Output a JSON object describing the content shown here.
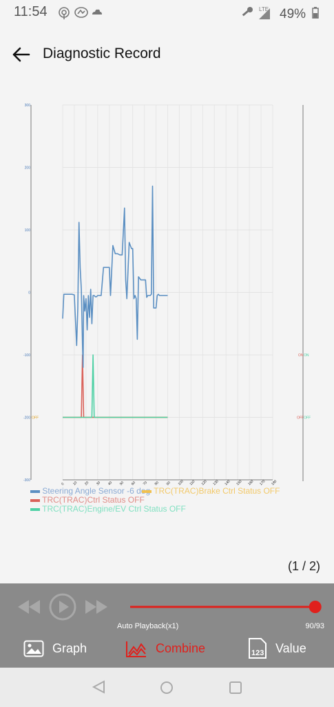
{
  "status_bar": {
    "time": "11:54",
    "battery": "49%",
    "network": "LTE",
    "icons": [
      "hotspot-icon",
      "link-icon",
      "cloud-icon",
      "key-icon",
      "signal-icon",
      "battery-icon"
    ]
  },
  "header": {
    "title": "Diagnostic Record",
    "back_icon": "arrow-left-icon"
  },
  "chart_data": {
    "type": "line",
    "left_axis_ticks": [
      "300",
      "200",
      "100",
      "0",
      "-100",
      "-200",
      "-300"
    ],
    "left_axis_range": [
      -300,
      300
    ],
    "x_ticks": [
      "0",
      "10",
      "20",
      "30",
      "40",
      "50",
      "60",
      "70",
      "80",
      "90",
      "100",
      "110",
      "120",
      "130",
      "140",
      "150",
      "160",
      "170",
      "180"
    ],
    "x_range": [
      0,
      180
    ],
    "left_state_label": "OFF",
    "right_labels": {
      "on_1": "ON",
      "on_2": "ON",
      "off_1": "OFF",
      "off_2": "OFF"
    },
    "grid": true,
    "legend_position": "bottom-left",
    "series": [
      {
        "name": "Steering Angle Sensor -6 deg",
        "color": "#5b8fc2",
        "x": [
          0,
          1,
          2,
          4,
          6,
          8,
          10,
          12,
          13,
          14,
          15,
          16,
          17,
          17.5,
          18,
          19,
          20,
          21,
          22,
          23,
          24,
          25,
          26,
          27,
          28,
          29,
          30,
          33,
          35,
          37,
          40,
          41,
          43,
          45,
          47,
          49,
          51,
          53,
          54,
          55,
          57,
          59,
          60,
          61,
          62,
          63,
          64,
          65,
          67,
          69,
          71,
          72,
          73,
          74,
          75,
          76,
          77,
          78,
          80,
          81,
          82,
          83,
          85,
          87,
          89,
          90
        ],
        "y": [
          -42,
          -3,
          -3,
          -3,
          -3,
          -3,
          -4,
          -85,
          -25,
          112,
          40,
          5,
          -85,
          -120,
          -5,
          -30,
          -10,
          -60,
          -5,
          -40,
          5,
          -50,
          -5,
          -5,
          -7,
          -7,
          -5,
          -5,
          40,
          40,
          40,
          -5,
          75,
          62,
          62,
          60,
          60,
          135,
          20,
          -10,
          80,
          70,
          70,
          -10,
          -5,
          -10,
          -75,
          25,
          20,
          20,
          20,
          -8,
          -5,
          -5,
          -5,
          -3,
          170,
          -25,
          -25,
          -5,
          -3,
          -5,
          -5,
          -5,
          -5,
          -5
        ]
      },
      {
        "name": "TRC(TRAC)Brake Ctrl Status OFF",
        "color": "#f2c14e",
        "x": [
          0,
          90
        ],
        "y": [
          -200,
          -200
        ]
      },
      {
        "name": "TRC(TRAC)Ctrl Status OFF",
        "color": "#d9625a",
        "x": [
          0,
          16,
          17,
          18,
          90
        ],
        "y": [
          -200,
          -200,
          -100,
          -200,
          -200
        ]
      },
      {
        "name": "TRC(TRAC)Engine/EV Ctrl Status OFF",
        "color": "#4fd1a5",
        "x": [
          0,
          25,
          26,
          27,
          90
        ],
        "y": [
          -200,
          -200,
          -100,
          -200,
          -200
        ]
      }
    ]
  },
  "page_indicator": "(1 / 2)",
  "playback": {
    "label": "Auto Playback(x1)",
    "position_text": "90/93",
    "progress": 0.97,
    "rewind_icon": "rewind-icon",
    "play_icon": "play-icon",
    "forward_icon": "fast-forward-icon"
  },
  "tabs": [
    {
      "label": "Graph",
      "icon": "image-icon",
      "active": false
    },
    {
      "label": "Combine",
      "icon": "line-chart-icon",
      "active": true
    },
    {
      "label": "Value",
      "icon": "value-123-icon",
      "active": false
    }
  ],
  "colors": {
    "accent": "#e0201c",
    "panel": "#8a8a8a"
  }
}
